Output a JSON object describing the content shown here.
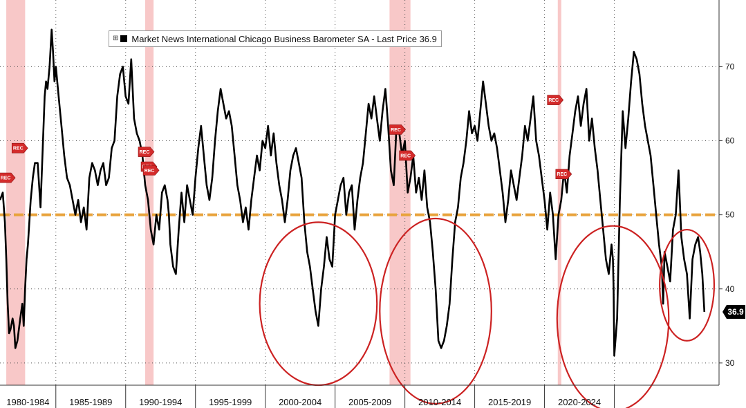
{
  "chart_data": {
    "type": "line",
    "legend": {
      "label": "Market News International Chicago Business Barometer SA - Last Price 36.9",
      "placement": "top-left"
    },
    "series": [
      {
        "name": "Market News International Chicago Business Barometer SA",
        "color": "#000000",
        "points": [
          [
            1980.0,
            52
          ],
          [
            1980.2,
            53
          ],
          [
            1980.35,
            49
          ],
          [
            1980.45,
            44
          ],
          [
            1980.55,
            38
          ],
          [
            1980.65,
            34
          ],
          [
            1980.75,
            34.5
          ],
          [
            1980.9,
            36
          ],
          [
            1981.0,
            35
          ],
          [
            1981.1,
            32
          ],
          [
            1981.25,
            33
          ],
          [
            1981.45,
            36
          ],
          [
            1981.6,
            38
          ],
          [
            1981.7,
            35
          ],
          [
            1981.8,
            40
          ],
          [
            1981.9,
            44
          ],
          [
            1982.0,
            46
          ],
          [
            1982.2,
            52
          ],
          [
            1982.35,
            55
          ],
          [
            1982.5,
            57
          ],
          [
            1982.7,
            57
          ],
          [
            1982.9,
            51
          ],
          [
            1983.0,
            56
          ],
          [
            1983.2,
            66
          ],
          [
            1983.3,
            68
          ],
          [
            1983.4,
            67
          ],
          [
            1983.55,
            70
          ],
          [
            1983.7,
            75
          ],
          [
            1983.8,
            72
          ],
          [
            1983.9,
            68
          ],
          [
            1984.0,
            70
          ],
          [
            1984.2,
            66
          ],
          [
            1984.4,
            62
          ],
          [
            1984.6,
            58
          ],
          [
            1984.8,
            55
          ],
          [
            1985.0,
            54
          ],
          [
            1985.2,
            52
          ],
          [
            1985.4,
            50
          ],
          [
            1985.6,
            52
          ],
          [
            1985.8,
            49
          ],
          [
            1986.0,
            51
          ],
          [
            1986.2,
            48
          ],
          [
            1986.4,
            55
          ],
          [
            1986.6,
            57
          ],
          [
            1986.8,
            56
          ],
          [
            1987.0,
            54
          ],
          [
            1987.2,
            56
          ],
          [
            1987.4,
            57
          ],
          [
            1987.6,
            54
          ],
          [
            1987.8,
            55
          ],
          [
            1988.0,
            59
          ],
          [
            1988.2,
            60
          ],
          [
            1988.4,
            66
          ],
          [
            1988.6,
            69
          ],
          [
            1988.8,
            70
          ],
          [
            1989.0,
            66
          ],
          [
            1989.2,
            65
          ],
          [
            1989.4,
            71
          ],
          [
            1989.6,
            63
          ],
          [
            1989.8,
            61
          ],
          [
            1990.0,
            60
          ],
          [
            1990.2,
            58
          ],
          [
            1990.4,
            54
          ],
          [
            1990.6,
            52
          ],
          [
            1990.8,
            48
          ],
          [
            1991.0,
            46
          ],
          [
            1991.2,
            50
          ],
          [
            1991.4,
            48
          ],
          [
            1991.6,
            53
          ],
          [
            1991.8,
            54
          ],
          [
            1992.0,
            52
          ],
          [
            1992.1,
            50
          ],
          [
            1992.2,
            46
          ],
          [
            1992.4,
            43
          ],
          [
            1992.6,
            42
          ],
          [
            1992.8,
            48
          ],
          [
            1993.0,
            53
          ],
          [
            1993.2,
            49
          ],
          [
            1993.4,
            54
          ],
          [
            1993.6,
            52
          ],
          [
            1993.8,
            50
          ],
          [
            1994.0,
            55
          ],
          [
            1994.2,
            59
          ],
          [
            1994.4,
            62
          ],
          [
            1994.6,
            58
          ],
          [
            1994.8,
            54
          ],
          [
            1995.0,
            52
          ],
          [
            1995.2,
            55
          ],
          [
            1995.4,
            60
          ],
          [
            1995.6,
            64
          ],
          [
            1995.8,
            67
          ],
          [
            1996.0,
            65
          ],
          [
            1996.2,
            63
          ],
          [
            1996.4,
            64
          ],
          [
            1996.6,
            62
          ],
          [
            1996.8,
            58
          ],
          [
            1997.0,
            54
          ],
          [
            1997.2,
            52
          ],
          [
            1997.4,
            49
          ],
          [
            1997.6,
            51
          ],
          [
            1997.8,
            48
          ],
          [
            1998.0,
            52
          ],
          [
            1998.2,
            55
          ],
          [
            1998.4,
            58
          ],
          [
            1998.6,
            56
          ],
          [
            1998.8,
            60
          ],
          [
            1999.0,
            59
          ],
          [
            1999.2,
            62
          ],
          [
            1999.4,
            58
          ],
          [
            1999.6,
            61
          ],
          [
            1999.8,
            57
          ],
          [
            2000.0,
            54
          ],
          [
            2000.2,
            52
          ],
          [
            2000.4,
            49
          ],
          [
            2000.6,
            52
          ],
          [
            2000.8,
            56
          ],
          [
            2001.0,
            58
          ],
          [
            2001.2,
            59
          ],
          [
            2001.4,
            57
          ],
          [
            2001.6,
            55
          ],
          [
            2001.8,
            49
          ],
          [
            2002.0,
            45
          ],
          [
            2002.2,
            43
          ],
          [
            2002.4,
            40
          ],
          [
            2002.6,
            37
          ],
          [
            2002.8,
            35
          ],
          [
            2003.0,
            40
          ],
          [
            2003.2,
            43
          ],
          [
            2003.4,
            47
          ],
          [
            2003.6,
            44
          ],
          [
            2003.8,
            43
          ],
          [
            2004.0,
            50
          ],
          [
            2004.2,
            52
          ],
          [
            2004.4,
            54
          ],
          [
            2004.6,
            55
          ],
          [
            2004.8,
            50
          ],
          [
            2005.0,
            53
          ],
          [
            2005.2,
            54
          ],
          [
            2005.4,
            48
          ],
          [
            2005.6,
            52
          ],
          [
            2005.8,
            55
          ],
          [
            2006.0,
            57
          ],
          [
            2006.2,
            61
          ],
          [
            2006.4,
            65
          ],
          [
            2006.6,
            63
          ],
          [
            2006.8,
            66
          ],
          [
            2007.0,
            63
          ],
          [
            2007.2,
            60
          ],
          [
            2007.4,
            64
          ],
          [
            2007.6,
            67
          ],
          [
            2007.8,
            62
          ],
          [
            2008.0,
            56
          ],
          [
            2008.2,
            54
          ],
          [
            2008.4,
            62
          ],
          [
            2008.6,
            61
          ],
          [
            2008.8,
            58
          ],
          [
            2009.0,
            60
          ],
          [
            2009.2,
            53
          ],
          [
            2009.4,
            55
          ],
          [
            2009.6,
            58
          ],
          [
            2009.8,
            53
          ],
          [
            2010.0,
            55
          ],
          [
            2010.2,
            52
          ],
          [
            2010.4,
            56
          ],
          [
            2010.6,
            51
          ],
          [
            2010.8,
            49
          ],
          [
            2011.0,
            45
          ],
          [
            2011.2,
            40
          ],
          [
            2011.4,
            33
          ],
          [
            2011.6,
            32
          ],
          [
            2011.8,
            33
          ],
          [
            2012.0,
            35
          ],
          [
            2012.2,
            38
          ],
          [
            2012.4,
            44
          ],
          [
            2012.6,
            49
          ],
          [
            2012.8,
            51
          ],
          [
            2013.0,
            55
          ],
          [
            2013.2,
            57
          ],
          [
            2013.4,
            60
          ],
          [
            2013.6,
            64
          ],
          [
            2013.8,
            61
          ],
          [
            2014.0,
            62
          ],
          [
            2014.2,
            60
          ],
          [
            2014.4,
            64
          ],
          [
            2014.6,
            68
          ],
          [
            2014.8,
            65
          ],
          [
            2015.0,
            62
          ],
          [
            2015.2,
            60
          ],
          [
            2015.4,
            61
          ],
          [
            2015.6,
            59
          ],
          [
            2015.8,
            56
          ],
          [
            2016.0,
            53
          ],
          [
            2016.2,
            49
          ],
          [
            2016.4,
            52
          ],
          [
            2016.6,
            56
          ],
          [
            2016.8,
            54
          ],
          [
            2017.0,
            52
          ],
          [
            2017.2,
            55
          ],
          [
            2017.4,
            58
          ],
          [
            2017.6,
            62
          ],
          [
            2017.8,
            60
          ],
          [
            2018.0,
            63
          ],
          [
            2018.2,
            66
          ],
          [
            2018.4,
            60
          ],
          [
            2018.6,
            58
          ],
          [
            2018.8,
            55
          ],
          [
            2019.0,
            52
          ],
          [
            2019.2,
            48
          ],
          [
            2019.4,
            53
          ],
          [
            2019.6,
            50
          ],
          [
            2019.8,
            44
          ],
          [
            2020.0,
            50
          ],
          [
            2020.2,
            52
          ],
          [
            2020.4,
            56
          ],
          [
            2020.6,
            53
          ],
          [
            2020.8,
            58
          ],
          [
            2021.0,
            61
          ],
          [
            2021.2,
            64
          ],
          [
            2021.4,
            66
          ],
          [
            2021.6,
            62
          ],
          [
            2021.8,
            65
          ],
          [
            2022.0,
            67
          ],
          [
            2022.2,
            60
          ],
          [
            2022.4,
            63
          ],
          [
            2022.6,
            59
          ],
          [
            2022.8,
            56
          ],
          [
            2023.0,
            52
          ],
          [
            2023.2,
            48
          ],
          [
            2023.4,
            44
          ],
          [
            2023.6,
            42
          ],
          [
            2023.8,
            46
          ],
          [
            2023.9,
            44
          ],
          [
            2023.95,
            40
          ],
          [
            2024.0,
            31
          ],
          [
            2024.2,
            36
          ],
          [
            2024.4,
            52
          ],
          [
            2024.6,
            64
          ],
          [
            2024.8,
            59
          ],
          [
            2025.0,
            63
          ],
          [
            2025.2,
            68
          ],
          [
            2025.4,
            72
          ],
          [
            2025.6,
            71
          ],
          [
            2025.8,
            69
          ],
          [
            2026.0,
            65
          ],
          [
            2026.2,
            62
          ],
          [
            2026.4,
            60
          ],
          [
            2026.6,
            58
          ],
          [
            2026.8,
            54
          ],
          [
            2027.0,
            50
          ],
          [
            2027.2,
            46
          ],
          [
            2027.4,
            43
          ],
          [
            2027.5,
            38
          ],
          [
            2027.6,
            45
          ],
          [
            2027.8,
            43
          ],
          [
            2028.0,
            41
          ],
          [
            2028.2,
            48
          ],
          [
            2028.4,
            50
          ],
          [
            2028.6,
            56
          ],
          [
            2028.8,
            47
          ],
          [
            2029.0,
            44
          ],
          [
            2029.2,
            42
          ],
          [
            2029.4,
            36
          ],
          [
            2029.6,
            44
          ],
          [
            2029.8,
            46
          ],
          [
            2030.0,
            47
          ],
          [
            2030.15,
            45
          ],
          [
            2030.3,
            42
          ],
          [
            2030.45,
            36.9
          ]
        ]
      }
    ],
    "y_ticks": [
      "30",
      "40",
      "50",
      "60",
      "70"
    ],
    "ylim": [
      27,
      79
    ],
    "xlim": [
      1980.0,
      2031.5
    ],
    "x_ticks": [
      {
        "label": "1980-1984",
        "start": 1980.0,
        "end": 1984.0
      },
      {
        "label": "1985-1989",
        "start": 1984.0,
        "end": 1989.0
      },
      {
        "label": "1990-1994",
        "start": 1989.0,
        "end": 1994.0
      },
      {
        "label": "1995-1999",
        "start": 1994.0,
        "end": 1999.0
      },
      {
        "label": "2000-2004",
        "start": 1999.0,
        "end": 2004.0
      },
      {
        "label": "2005-2009",
        "start": 2004.0,
        "end": 2009.0
      },
      {
        "label": "2010-2014",
        "start": 2009.0,
        "end": 2014.0
      },
      {
        "label": "2015-2019",
        "start": 2014.0,
        "end": 2019.0
      },
      {
        "label": "2020-2024",
        "start": 2019.0,
        "end": 2024.0
      }
    ],
    "reference_line": {
      "value": 50,
      "color": "#e8a33c"
    },
    "recession_bands": [
      {
        "start": 1980.45,
        "end": 1981.8,
        "color": "#f8c8c8"
      },
      {
        "start": 1990.4,
        "end": 1991.0,
        "color": "#f8c8c8"
      },
      {
        "start": 2007.9,
        "end": 2009.4,
        "color": "#f8c8c8"
      },
      {
        "start": 2019.95,
        "end": 2020.2,
        "color": "#f8c8c8"
      }
    ],
    "rec_markers": [
      {
        "label": "REC",
        "x": 1980.45,
        "y": 55
      },
      {
        "label": "REC",
        "x": 1981.35,
        "y": 59
      },
      {
        "label": "REC",
        "x": 1990.4,
        "y": 58.5
      },
      {
        "label": "REC",
        "x": 1990.6,
        "y": 56.5
      },
      {
        "label": "REC",
        "x": 1990.75,
        "y": 56
      },
      {
        "label": "REC",
        "x": 2008.4,
        "y": 61.5
      },
      {
        "label": "REC",
        "x": 2009.1,
        "y": 58
      },
      {
        "label": "REC",
        "x": 2019.7,
        "y": 65.5
      },
      {
        "label": "REC",
        "x": 2020.3,
        "y": 55.5
      }
    ],
    "circles": [
      {
        "cx": 2002.8,
        "cy": 38,
        "rx": 4.2,
        "ry": 11,
        "color": "#cc2222"
      },
      {
        "cx": 2011.2,
        "cy": 37,
        "rx": 4.0,
        "ry": 12.5,
        "color": "#cc2222"
      },
      {
        "cx": 2023.9,
        "cy": 36,
        "rx": 4.0,
        "ry": 12.5,
        "color": "#cc2222"
      },
      {
        "cx": 2029.2,
        "cy": 40.5,
        "rx": 1.95,
        "ry": 7.5,
        "color": "#cc2222"
      }
    ],
    "last_value": {
      "label": "36.9",
      "value": 36.9
    },
    "grid": true,
    "grid_style": "dotted",
    "y_axis_side": "right"
  }
}
